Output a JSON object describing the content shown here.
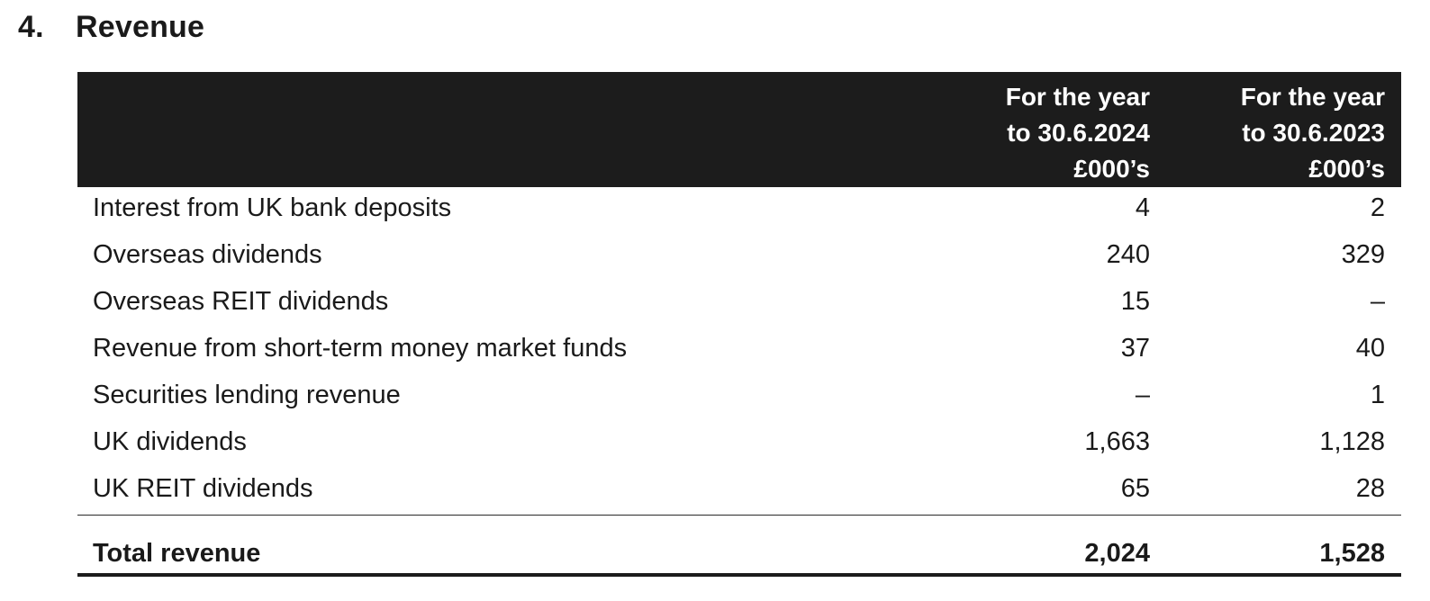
{
  "section": {
    "number": "4.",
    "title": "Revenue"
  },
  "table": {
    "headers": {
      "col_2024": [
        "For the year",
        "to 30.6.2024",
        "£000’s"
      ],
      "col_2023": [
        "For the year",
        "to 30.6.2023",
        "£000’s"
      ]
    },
    "rows": [
      {
        "label": "Interest from UK bank deposits",
        "y2024": "4",
        "y2023": "2"
      },
      {
        "label": "Overseas dividends",
        "y2024": "240",
        "y2023": "329"
      },
      {
        "label": "Overseas REIT dividends",
        "y2024": "15",
        "y2023": "–"
      },
      {
        "label": "Revenue from short-term money market funds",
        "y2024": "37",
        "y2023": "40"
      },
      {
        "label": "Securities lending revenue",
        "y2024": "–",
        "y2023": "1"
      },
      {
        "label": "UK dividends",
        "y2024": "1,663",
        "y2023": "1,128"
      },
      {
        "label": "UK REIT dividends",
        "y2024": "65",
        "y2023": "28"
      }
    ],
    "total": {
      "label": "Total revenue",
      "y2024": "2,024",
      "y2023": "1,528"
    }
  }
}
